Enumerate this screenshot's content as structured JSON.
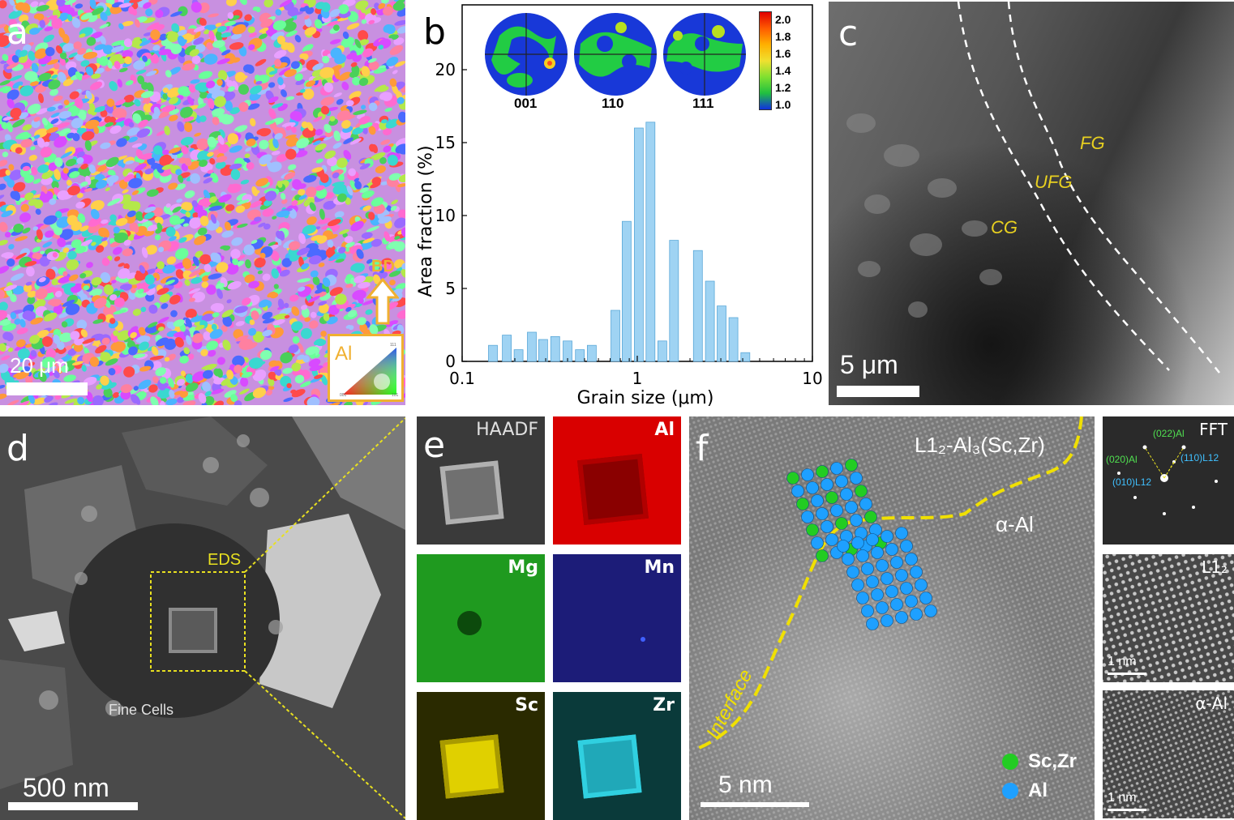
{
  "panels": {
    "a": {
      "label": "a",
      "scale_bar": "20 μm",
      "direction": "BD",
      "ipf_material": "Al",
      "ipf_corners": [
        "001",
        "101",
        "111"
      ]
    },
    "b": {
      "label": "b",
      "pole_figures": [
        "001",
        "110",
        "111"
      ],
      "colorbar_ticks": [
        "2.0",
        "1.8",
        "1.6",
        "1.4",
        "1.2",
        "1.0"
      ]
    },
    "c": {
      "label": "c",
      "scale_bar": "5 μm",
      "zones": [
        "FG",
        "UFG",
        "CG"
      ]
    },
    "d": {
      "label": "d",
      "scale_bar": "500 nm",
      "box_label": "EDS",
      "cell_label": "Fine Cells"
    },
    "e": {
      "label": "e",
      "maps": [
        "HAADF",
        "Al",
        "Mg",
        "Mn",
        "Sc",
        "Zr"
      ],
      "map_colors": [
        "#3a3a3a",
        "#d90000",
        "#1f9a1f",
        "#1c1c78",
        "#2a2a00",
        "#0a3a3a"
      ]
    },
    "f": {
      "label": "f",
      "phase_top": "L1₂-Al₃(Sc,Zr)",
      "phase_bottom": "α-Al",
      "interface": "Interface",
      "scale_bar": "5 nm",
      "legend": [
        "Sc,Zr",
        "Al"
      ],
      "legend_colors": [
        "#22cc22",
        "#1ea0ff"
      ]
    },
    "side": {
      "fft_title": "FFT",
      "fft_spots": [
        "(022)Al",
        "(020)Al",
        "(110)L12",
        "(010)L12"
      ],
      "l12_title": "L1₂",
      "l12_scale": "1 nm",
      "al_title": "α-Al",
      "al_scale": "1 nm"
    }
  },
  "chart_data": {
    "type": "bar",
    "xlabel": "Grain size (μm)",
    "ylabel": "Area fraction (%)",
    "xscale": "log",
    "xlim": [
      0.1,
      10
    ],
    "ylim": [
      0,
      24
    ],
    "x_ticks": [
      "0.1",
      "1",
      "10"
    ],
    "y_ticks": [
      "0",
      "5",
      "10",
      "15",
      "20"
    ],
    "color": "#9fd3f3",
    "x": [
      0.15,
      0.18,
      0.21,
      0.25,
      0.29,
      0.34,
      0.4,
      0.47,
      0.55,
      0.64,
      0.75,
      0.87,
      1.02,
      1.19,
      1.39,
      1.62,
      1.9,
      2.22,
      2.6,
      3.03,
      3.54,
      4.14,
      4.84
    ],
    "values": [
      1.1,
      1.8,
      0.8,
      2.0,
      1.5,
      1.7,
      1.4,
      0.8,
      1.1,
      0.0,
      3.5,
      9.6,
      16.0,
      16.4,
      1.4,
      8.3,
      0.0,
      7.6,
      5.5,
      3.8,
      3.0,
      0.6,
      0.0
    ]
  }
}
